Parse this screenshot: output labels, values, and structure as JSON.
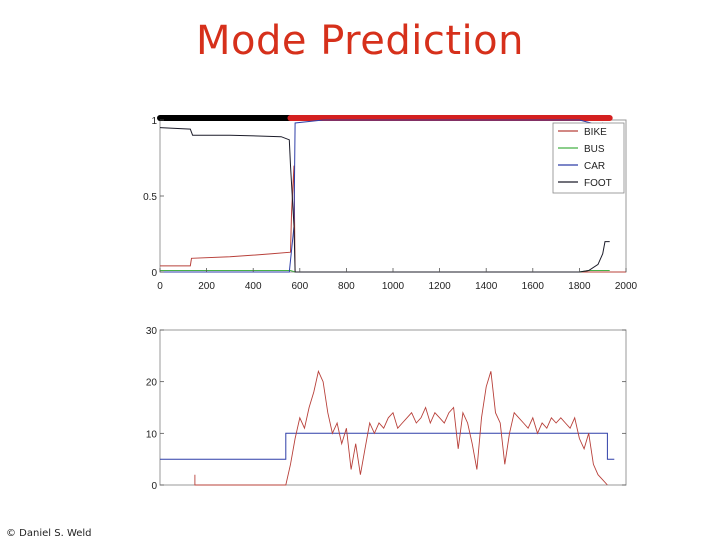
{
  "slide": {
    "title": "Mode Prediction",
    "footer": "© Daniel S. Weld"
  },
  "colors": {
    "title": "#d6301b",
    "bike": "#b8403a",
    "bus": "#46b046",
    "car": "#2f3fa8",
    "foot": "#1c1c2a",
    "bar_foot": "#000000",
    "bar_car": "#d42020"
  },
  "chart_data": [
    {
      "type": "line",
      "title": "",
      "xlabel": "",
      "ylabel": "",
      "xlim": [
        0,
        2000
      ],
      "ylim": [
        0,
        1
      ],
      "x_ticks": [
        0,
        200,
        400,
        600,
        800,
        1000,
        1200,
        1400,
        1600,
        1800,
        2000
      ],
      "y_ticks": [
        0,
        0.5,
        1
      ],
      "legend": {
        "placement": "top-right",
        "entries": [
          "BIKE",
          "BUS",
          "CAR",
          "FOOT"
        ]
      },
      "top_bar": {
        "segments": [
          {
            "label": "FOOT",
            "x": [
              0,
              560
            ]
          },
          {
            "label": "CAR",
            "x": [
              560,
              1930
            ]
          }
        ]
      },
      "series": [
        {
          "name": "BIKE",
          "x": [
            0,
            130,
            135,
            300,
            480,
            560,
            565,
            575,
            580,
            700,
            720,
            2000
          ],
          "y": [
            0.04,
            0.04,
            0.09,
            0.1,
            0.12,
            0.13,
            0.4,
            0.7,
            0.0,
            0.0,
            0.0,
            0.0
          ]
        },
        {
          "name": "BUS",
          "x": [
            0,
            130,
            560,
            580,
            1800,
            1840,
            1930
          ],
          "y": [
            0.01,
            0.01,
            0.01,
            0.0,
            0.0,
            0.01,
            0.01
          ]
        },
        {
          "name": "CAR",
          "x": [
            0,
            555,
            575,
            580,
            700,
            1800,
            1850,
            1880,
            1900,
            1910,
            1930
          ],
          "y": [
            0.0,
            0.0,
            0.3,
            0.98,
            1.0,
            1.0,
            0.98,
            0.95,
            0.98,
            0.96,
            0.97
          ]
        },
        {
          "name": "FOOT",
          "x": [
            0,
            130,
            140,
            300,
            520,
            555,
            560,
            575,
            580,
            700,
            1800,
            1840,
            1880,
            1900,
            1910,
            1920,
            1930
          ],
          "y": [
            0.95,
            0.94,
            0.9,
            0.9,
            0.89,
            0.87,
            0.7,
            0.3,
            0.0,
            0.0,
            0.0,
            0.01,
            0.05,
            0.12,
            0.2,
            0.2,
            0.2
          ]
        }
      ]
    },
    {
      "type": "line",
      "title": "",
      "xlabel": "",
      "ylabel": "",
      "xlim": [
        0,
        2000
      ],
      "ylim": [
        0,
        30
      ],
      "y_ticks": [
        0,
        10,
        20,
        30
      ],
      "series": [
        {
          "name": "",
          "x": [
            0,
            540,
            540,
            1920,
            1920,
            1950
          ],
          "y": [
            5,
            5,
            10,
            10,
            5,
            5
          ]
        },
        {
          "name": "",
          "x": [
            150,
            150,
            540,
            560,
            580,
            600,
            620,
            640,
            660,
            680,
            700,
            720,
            740,
            760,
            780,
            800,
            820,
            840,
            860,
            880,
            900,
            920,
            940,
            960,
            980,
            1000,
            1020,
            1040,
            1060,
            1080,
            1100,
            1120,
            1140,
            1160,
            1180,
            1200,
            1220,
            1240,
            1260,
            1280,
            1300,
            1320,
            1340,
            1360,
            1380,
            1400,
            1420,
            1440,
            1460,
            1480,
            1500,
            1520,
            1540,
            1560,
            1580,
            1600,
            1620,
            1640,
            1660,
            1680,
            1700,
            1720,
            1740,
            1760,
            1780,
            1800,
            1820,
            1840,
            1860,
            1880,
            1900,
            1920
          ],
          "y": [
            2,
            0,
            0,
            4,
            9,
            13,
            11,
            15,
            18,
            22,
            20,
            14,
            10,
            12,
            8,
            11,
            3,
            8,
            2,
            7,
            12,
            10,
            12,
            11,
            13,
            14,
            11,
            12,
            13,
            14,
            12,
            13,
            15,
            12,
            14,
            13,
            12,
            14,
            15,
            7,
            14,
            12,
            8,
            3,
            13,
            19,
            22,
            14,
            12,
            4,
            10,
            14,
            13,
            12,
            11,
            13,
            10,
            12,
            11,
            13,
            12,
            13,
            12,
            11,
            13,
            9,
            7,
            10,
            4,
            2,
            1,
            0
          ]
        }
      ]
    }
  ]
}
